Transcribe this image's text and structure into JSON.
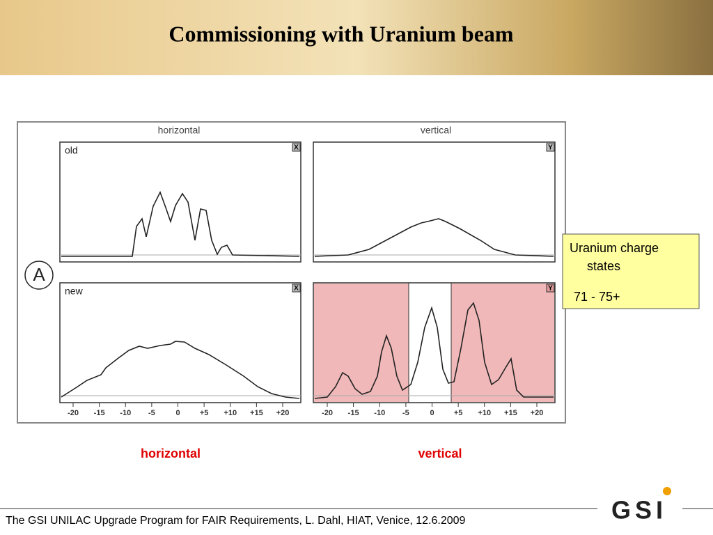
{
  "header": {
    "title": "Commissioning with Uranium beam"
  },
  "figure": {
    "column_titles": [
      "horizontal",
      "vertical"
    ],
    "row_labels": [
      "old",
      "new"
    ],
    "panel_markers": [
      "X",
      "Y",
      "X",
      "Y"
    ],
    "circle_label": "A",
    "x_ticks": [
      "-20",
      "-15",
      "-10",
      "-5",
      "0",
      "+5",
      "+10",
      "+15",
      "+20"
    ]
  },
  "note": {
    "lines": [
      "Uranium charge",
      "states",
      "71 - 75+"
    ]
  },
  "captions": [
    "horizontal",
    "vertical"
  ],
  "footer": {
    "text": "The GSI UNILAC Upgrade Program for FAIR Requirements, L. Dahl, HIAT, Venice, 12.6.2009",
    "logo": "GSI"
  }
}
